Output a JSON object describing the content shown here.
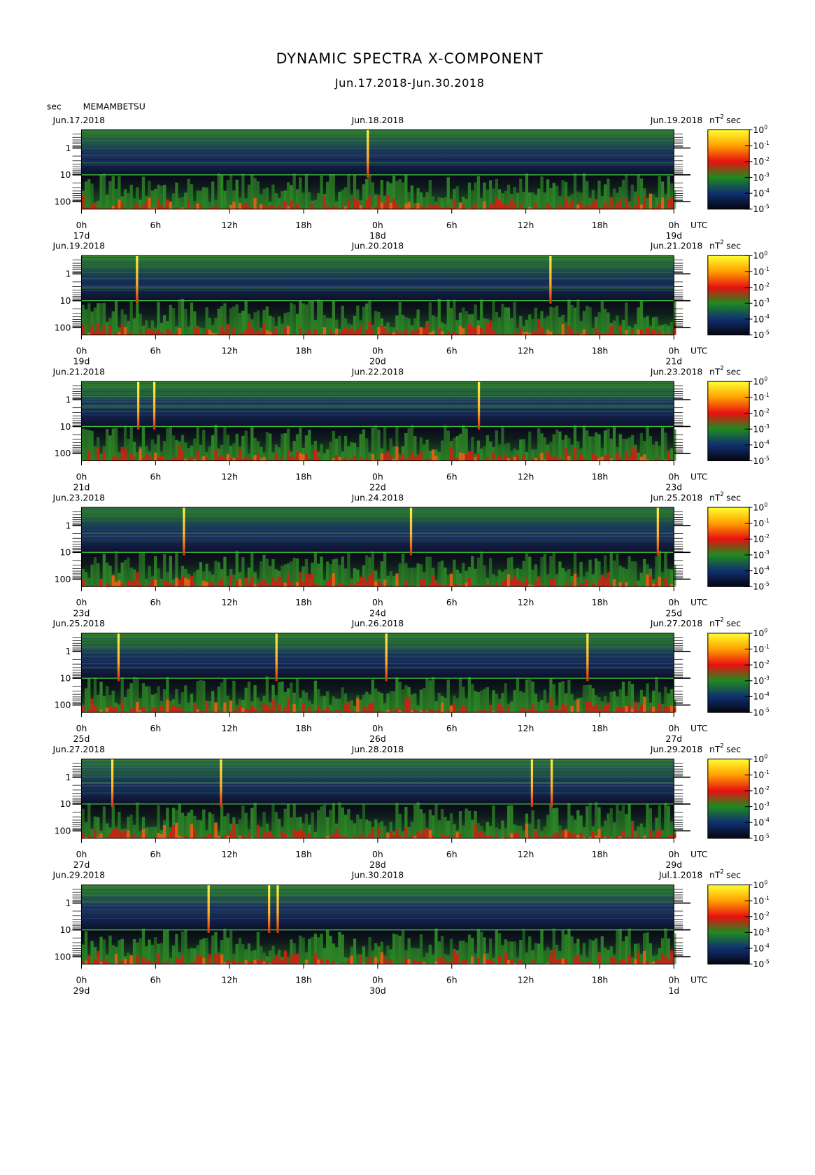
{
  "chart_data": {
    "type": "spectrogram",
    "title": "DYNAMIC SPECTRA X-COMPONENT",
    "subtitle": "Jun.17.2018-Jun.30.2018",
    "y_unit": "sec",
    "station": "MEMAMBETSU",
    "unit": {
      "base": "nT",
      "exponent": "2",
      "suffix": "sec"
    },
    "yscale": "log",
    "ylim": [
      0.21,
      190
    ],
    "yticks": [
      1,
      10,
      100
    ],
    "xlim": [
      0,
      48
    ],
    "xticks": [
      {
        "value": 0,
        "label": "0h"
      },
      {
        "value": 6,
        "label": "6h"
      },
      {
        "value": 12,
        "label": "12h"
      },
      {
        "value": 18,
        "label": "18h"
      },
      {
        "value": 24,
        "label": "0h"
      },
      {
        "value": 30,
        "label": "6h"
      },
      {
        "value": 36,
        "label": "12h"
      },
      {
        "value": 42,
        "label": "18h"
      },
      {
        "value": 48,
        "label": "0h"
      }
    ],
    "x_unit": "UTC",
    "colorbar_ticks": [
      {
        "base": "10",
        "exponent": "0"
      },
      {
        "base": "10",
        "exponent": "-1"
      },
      {
        "base": "10",
        "exponent": "-2"
      },
      {
        "base": "10",
        "exponent": "-3"
      },
      {
        "base": "10",
        "exponent": "-4"
      },
      {
        "base": "10",
        "exponent": "-5"
      }
    ],
    "panels": [
      {
        "date_left": "Jun.17.2018",
        "date_mid": "Jun.18.2018",
        "date_right": "Jun.19.2018",
        "days": [
          "17d",
          "18d",
          "19d"
        ],
        "spikes": [
          23.2
        ]
      },
      {
        "date_left": "Jun.19.2018",
        "date_mid": "Jun.20.2018",
        "date_right": "Jun.21.2018",
        "days": [
          "19d",
          "20d",
          "21d"
        ],
        "spikes": [
          4.5,
          38.0
        ]
      },
      {
        "date_left": "Jun.21.2018",
        "date_mid": "Jun.22.2018",
        "date_right": "Jun.23.2018",
        "days": [
          "21d",
          "22d",
          "23d"
        ],
        "spikes": [
          4.6,
          5.9,
          32.2
        ]
      },
      {
        "date_left": "Jun.23.2018",
        "date_mid": "Jun.24.2018",
        "date_right": "Jun.25.2018",
        "days": [
          "23d",
          "24d",
          "25d"
        ],
        "spikes": [
          8.3,
          26.7,
          46.7
        ]
      },
      {
        "date_left": "Jun.25.2018",
        "date_mid": "Jun.26.2018",
        "date_right": "Jun.27.2018",
        "days": [
          "25d",
          "26d",
          "27d"
        ],
        "spikes": [
          3.0,
          15.8,
          24.7,
          41.0
        ]
      },
      {
        "date_left": "Jun.27.2018",
        "date_mid": "Jun.28.2018",
        "date_right": "Jun.29.2018",
        "days": [
          "27d",
          "28d",
          "29d"
        ],
        "spikes": [
          2.5,
          11.3,
          36.5,
          38.1
        ]
      },
      {
        "date_left": "Jun.29.2018",
        "date_mid": "Jun.30.2018",
        "date_right": "Jul.1.2018",
        "days": [
          "29d",
          "30d",
          "1d"
        ],
        "spikes": [
          10.3,
          15.2,
          15.9
        ]
      }
    ]
  }
}
